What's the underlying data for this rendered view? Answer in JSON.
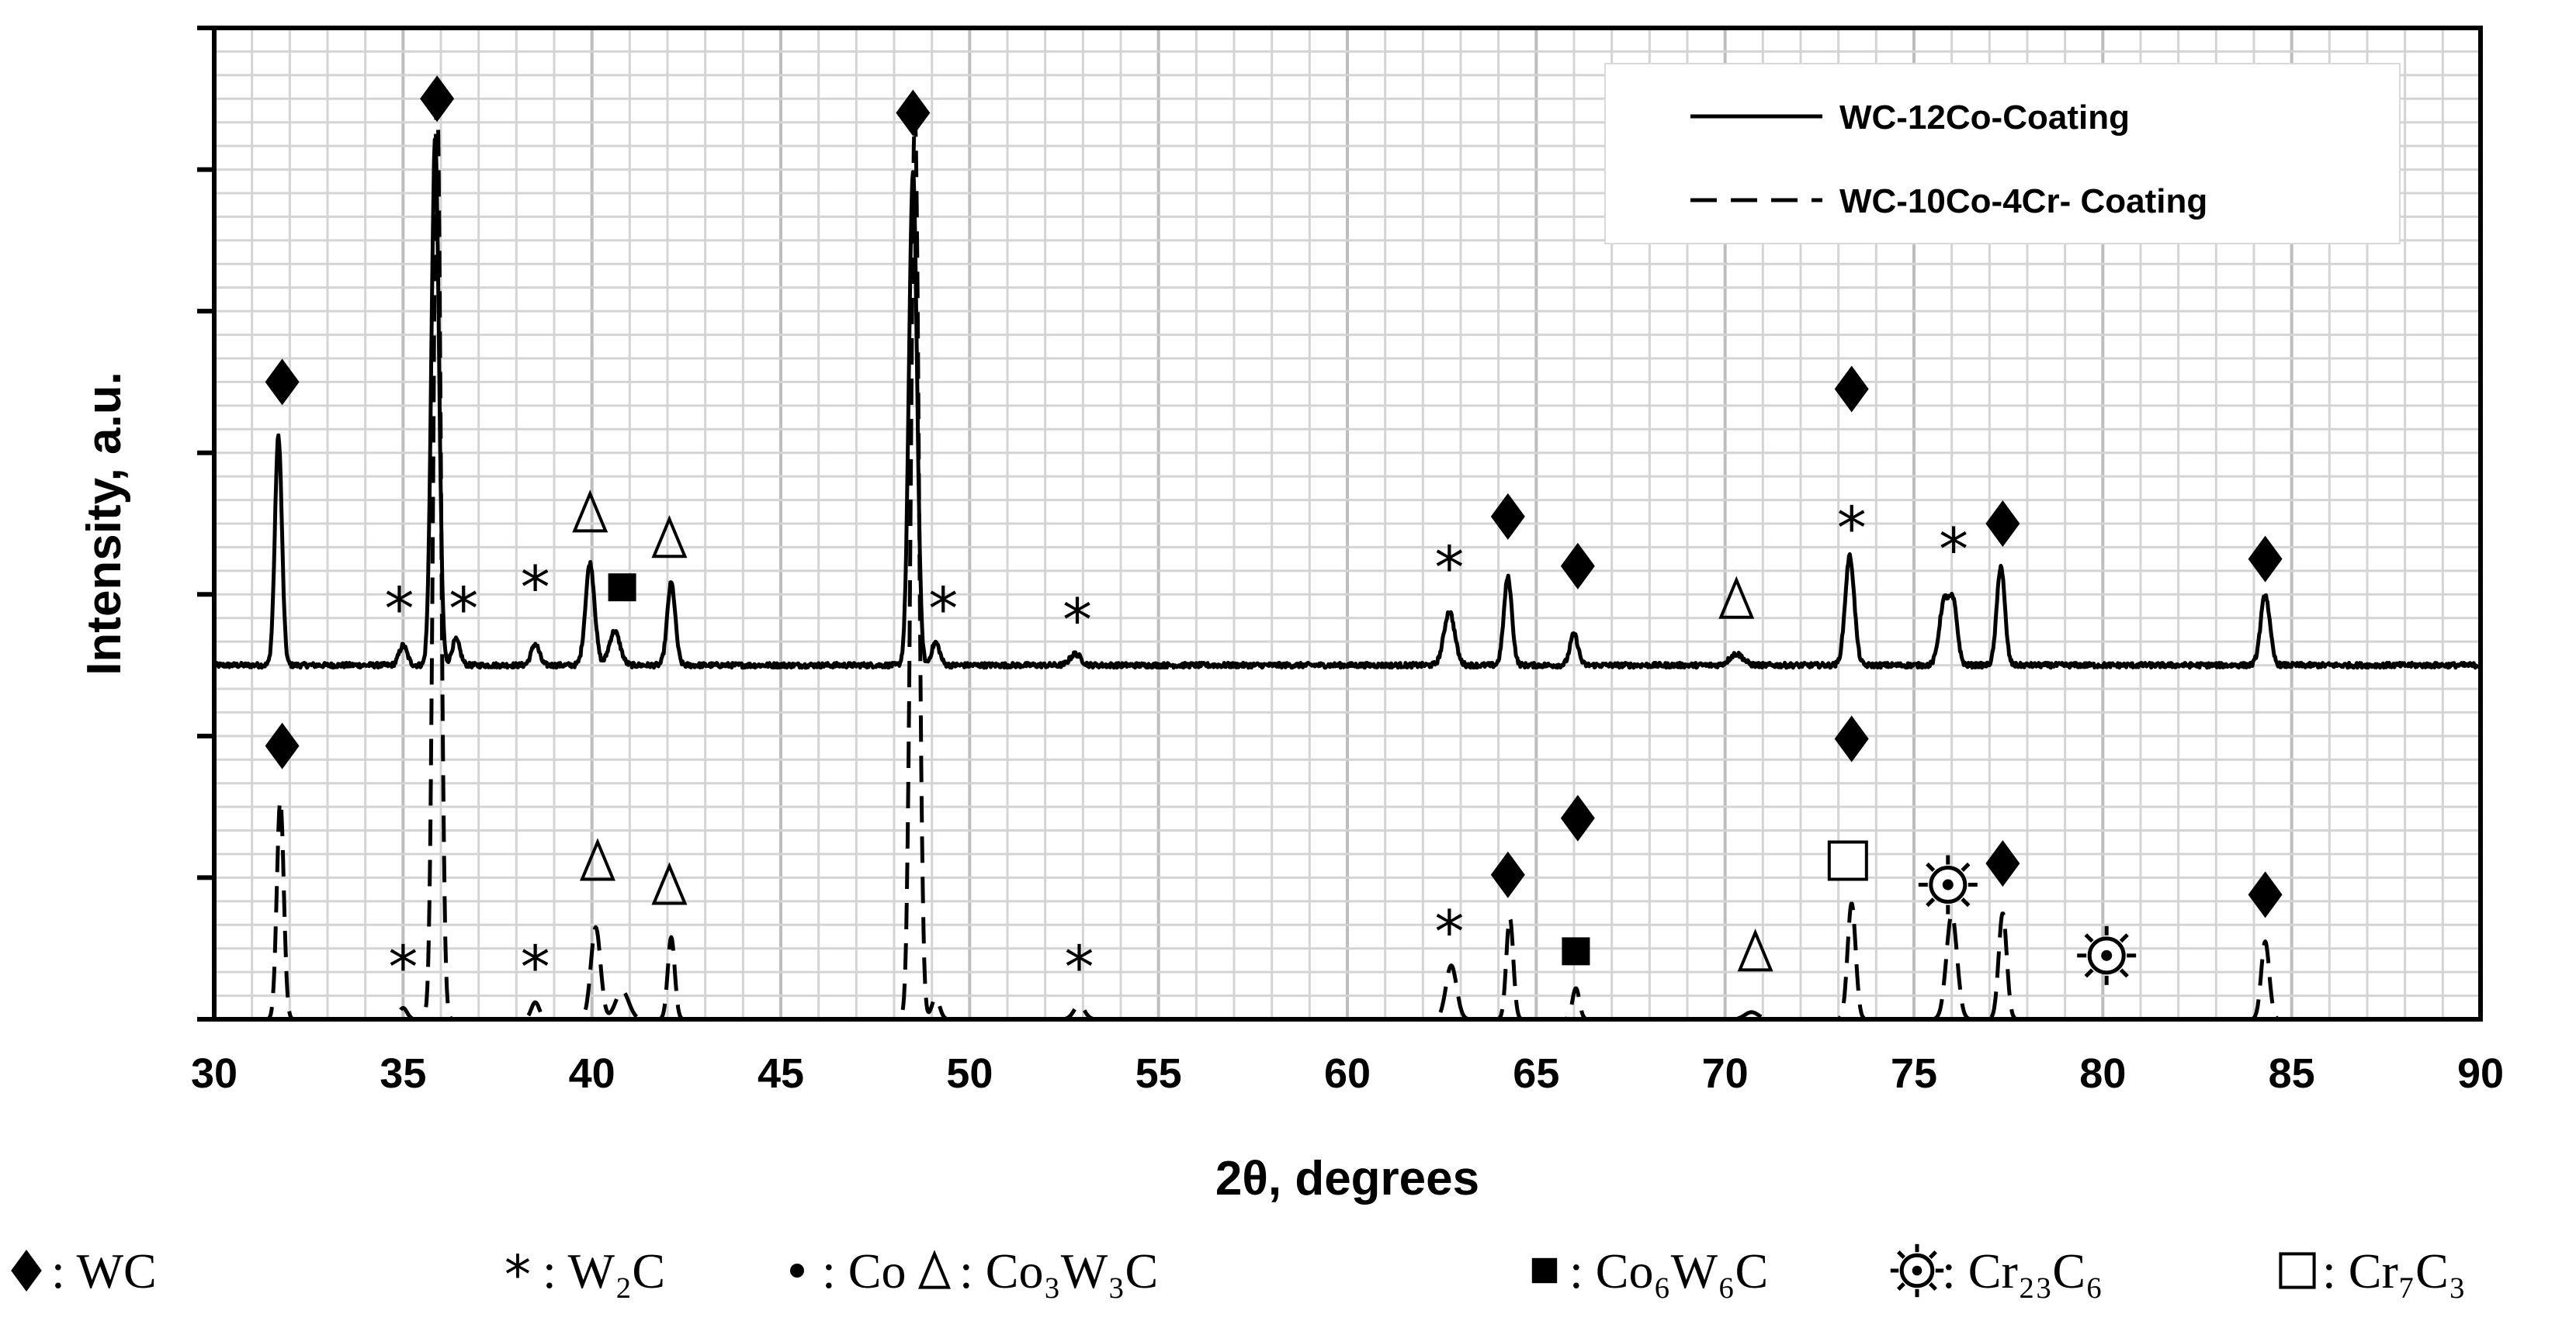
{
  "chart_data": {
    "type": "line",
    "title": "",
    "xlabel": "2θ, degrees",
    "ylabel": "Intensity, a.u.",
    "xlim": [
      30,
      90
    ],
    "ylim": [
      0,
      7
    ],
    "xticks": [
      "30",
      "35",
      "40",
      "45",
      "50",
      "55",
      "60",
      "65",
      "70",
      "75",
      "80",
      "85",
      "90"
    ],
    "yticks_count": 7,
    "grid": true,
    "legend_position": "top-right",
    "series": [
      {
        "name": "WC-12Co-Coating",
        "style": "solid",
        "baseline": 2.5,
        "peaks": [
          {
            "x": 31.7,
            "h": 1.62,
            "w": 0.13
          },
          {
            "x": 35.0,
            "h": 0.14,
            "w": 0.15
          },
          {
            "x": 35.85,
            "h": 3.72,
            "w": 0.14
          },
          {
            "x": 36.4,
            "h": 0.18,
            "w": 0.15
          },
          {
            "x": 38.5,
            "h": 0.15,
            "w": 0.15
          },
          {
            "x": 39.95,
            "h": 0.72,
            "w": 0.17
          },
          {
            "x": 40.6,
            "h": 0.24,
            "w": 0.2
          },
          {
            "x": 42.1,
            "h": 0.58,
            "w": 0.15
          },
          {
            "x": 48.5,
            "h": 3.48,
            "w": 0.15
          },
          {
            "x": 49.1,
            "h": 0.16,
            "w": 0.15
          },
          {
            "x": 52.8,
            "h": 0.08,
            "w": 0.2
          },
          {
            "x": 62.7,
            "h": 0.38,
            "w": 0.2
          },
          {
            "x": 64.25,
            "h": 0.62,
            "w": 0.15
          },
          {
            "x": 66.0,
            "h": 0.22,
            "w": 0.15
          },
          {
            "x": 70.3,
            "h": 0.08,
            "w": 0.25
          },
          {
            "x": 73.3,
            "h": 0.77,
            "w": 0.17
          },
          {
            "x": 75.8,
            "h": 0.45,
            "w": 0.18
          },
          {
            "x": 76.05,
            "h": 0.4,
            "w": 0.15
          },
          {
            "x": 77.3,
            "h": 0.7,
            "w": 0.15
          },
          {
            "x": 84.3,
            "h": 0.5,
            "w": 0.17
          }
        ]
      },
      {
        "name": "WC-10Co-4Cr- Coating",
        "style": "dashed",
        "baseline": 0.0,
        "peaks": [
          {
            "x": 31.75,
            "h": 1.55,
            "w": 0.13
          },
          {
            "x": 35.0,
            "h": 0.08,
            "w": 0.15
          },
          {
            "x": 35.9,
            "h": 6.6,
            "w": 0.14
          },
          {
            "x": 38.5,
            "h": 0.12,
            "w": 0.15
          },
          {
            "x": 40.1,
            "h": 0.65,
            "w": 0.18
          },
          {
            "x": 40.8,
            "h": 0.2,
            "w": 0.25
          },
          {
            "x": 42.1,
            "h": 0.58,
            "w": 0.13
          },
          {
            "x": 48.55,
            "h": 6.4,
            "w": 0.15
          },
          {
            "x": 49.1,
            "h": 0.15,
            "w": 0.15
          },
          {
            "x": 52.9,
            "h": 0.1,
            "w": 0.2
          },
          {
            "x": 62.75,
            "h": 0.38,
            "w": 0.2
          },
          {
            "x": 64.3,
            "h": 0.72,
            "w": 0.13
          },
          {
            "x": 66.05,
            "h": 0.22,
            "w": 0.13
          },
          {
            "x": 70.7,
            "h": 0.05,
            "w": 0.25
          },
          {
            "x": 73.35,
            "h": 0.82,
            "w": 0.15
          },
          {
            "x": 76.0,
            "h": 0.74,
            "w": 0.2
          },
          {
            "x": 77.35,
            "h": 0.75,
            "w": 0.15
          },
          {
            "x": 84.3,
            "h": 0.55,
            "w": 0.15
          }
        ]
      }
    ],
    "annotations": [
      {
        "s": "diamond",
        "x": 31.8,
        "y": 4.5
      },
      {
        "s": "diamond",
        "x": 35.9,
        "y": 6.5
      },
      {
        "s": "diamond",
        "x": 48.5,
        "y": 6.4
      },
      {
        "s": "diamond",
        "x": 64.25,
        "y": 3.55
      },
      {
        "s": "diamond",
        "x": 66.1,
        "y": 3.2
      },
      {
        "s": "diamond",
        "x": 73.35,
        "y": 4.45
      },
      {
        "s": "diamond",
        "x": 77.35,
        "y": 3.5
      },
      {
        "s": "diamond",
        "x": 84.3,
        "y": 3.25
      },
      {
        "s": "star",
        "x": 34.9,
        "y": 2.93
      },
      {
        "s": "star",
        "x": 36.6,
        "y": 2.93
      },
      {
        "s": "star",
        "x": 38.5,
        "y": 3.08
      },
      {
        "s": "star",
        "x": 49.3,
        "y": 2.93
      },
      {
        "s": "star",
        "x": 52.85,
        "y": 2.85
      },
      {
        "s": "star",
        "x": 62.7,
        "y": 3.22
      },
      {
        "s": "star",
        "x": 73.35,
        "y": 3.5
      },
      {
        "s": "star",
        "x": 76.05,
        "y": 3.35
      },
      {
        "s": "triangle",
        "x": 39.95,
        "y": 3.58
      },
      {
        "s": "triangle",
        "x": 42.05,
        "y": 3.4
      },
      {
        "s": "triangle",
        "x": 70.3,
        "y": 2.97
      },
      {
        "s": "square",
        "x": 40.8,
        "y": 3.05
      },
      {
        "s": "diamond",
        "x": 31.8,
        "y": 1.93
      },
      {
        "s": "diamond",
        "x": 64.25,
        "y": 1.02
      },
      {
        "s": "diamond",
        "x": 66.1,
        "y": 1.42
      },
      {
        "s": "diamond",
        "x": 73.35,
        "y": 1.98
      },
      {
        "s": "diamond",
        "x": 77.35,
        "y": 1.1
      },
      {
        "s": "diamond",
        "x": 84.3,
        "y": 0.88
      },
      {
        "s": "star",
        "x": 35.0,
        "y": 0.4
      },
      {
        "s": "star",
        "x": 38.5,
        "y": 0.4
      },
      {
        "s": "star",
        "x": 52.9,
        "y": 0.4
      },
      {
        "s": "star",
        "x": 62.7,
        "y": 0.65
      },
      {
        "s": "triangle",
        "x": 40.15,
        "y": 1.12
      },
      {
        "s": "triangle",
        "x": 42.05,
        "y": 0.95
      },
      {
        "s": "triangle",
        "x": 70.8,
        "y": 0.48
      },
      {
        "s": "square",
        "x": 66.05,
        "y": 0.48
      },
      {
        "s": "open_square",
        "x": 73.25,
        "y": 1.12
      },
      {
        "s": "sun",
        "x": 75.9,
        "y": 0.95
      },
      {
        "s": "sun",
        "x": 80.1,
        "y": 0.45
      }
    ]
  },
  "legend": {
    "items": [
      {
        "label": "WC-12Co-Coating",
        "style": "solid"
      },
      {
        "label": "WC-10Co-4Cr- Coating",
        "style": "dashed"
      }
    ]
  },
  "phase_key": [
    {
      "symbol": "diamond",
      "glyph": "♦",
      "text": ": WC"
    },
    {
      "symbol": "star",
      "glyph": "*",
      "text": ": W₂C"
    },
    {
      "symbol": "dot",
      "glyph": "•",
      "text": ": Co"
    },
    {
      "symbol": "triangle",
      "glyph": "Δ",
      "text": ": Co₃W₃C"
    },
    {
      "symbol": "square",
      "glyph": "■",
      "text": ": Co₆W₆C"
    },
    {
      "symbol": "sun",
      "glyph": "☼",
      "text": ": Cr₂₃C₆"
    },
    {
      "symbol": "open_square",
      "glyph": "□",
      "text": ": Cr₇C₃"
    }
  ]
}
